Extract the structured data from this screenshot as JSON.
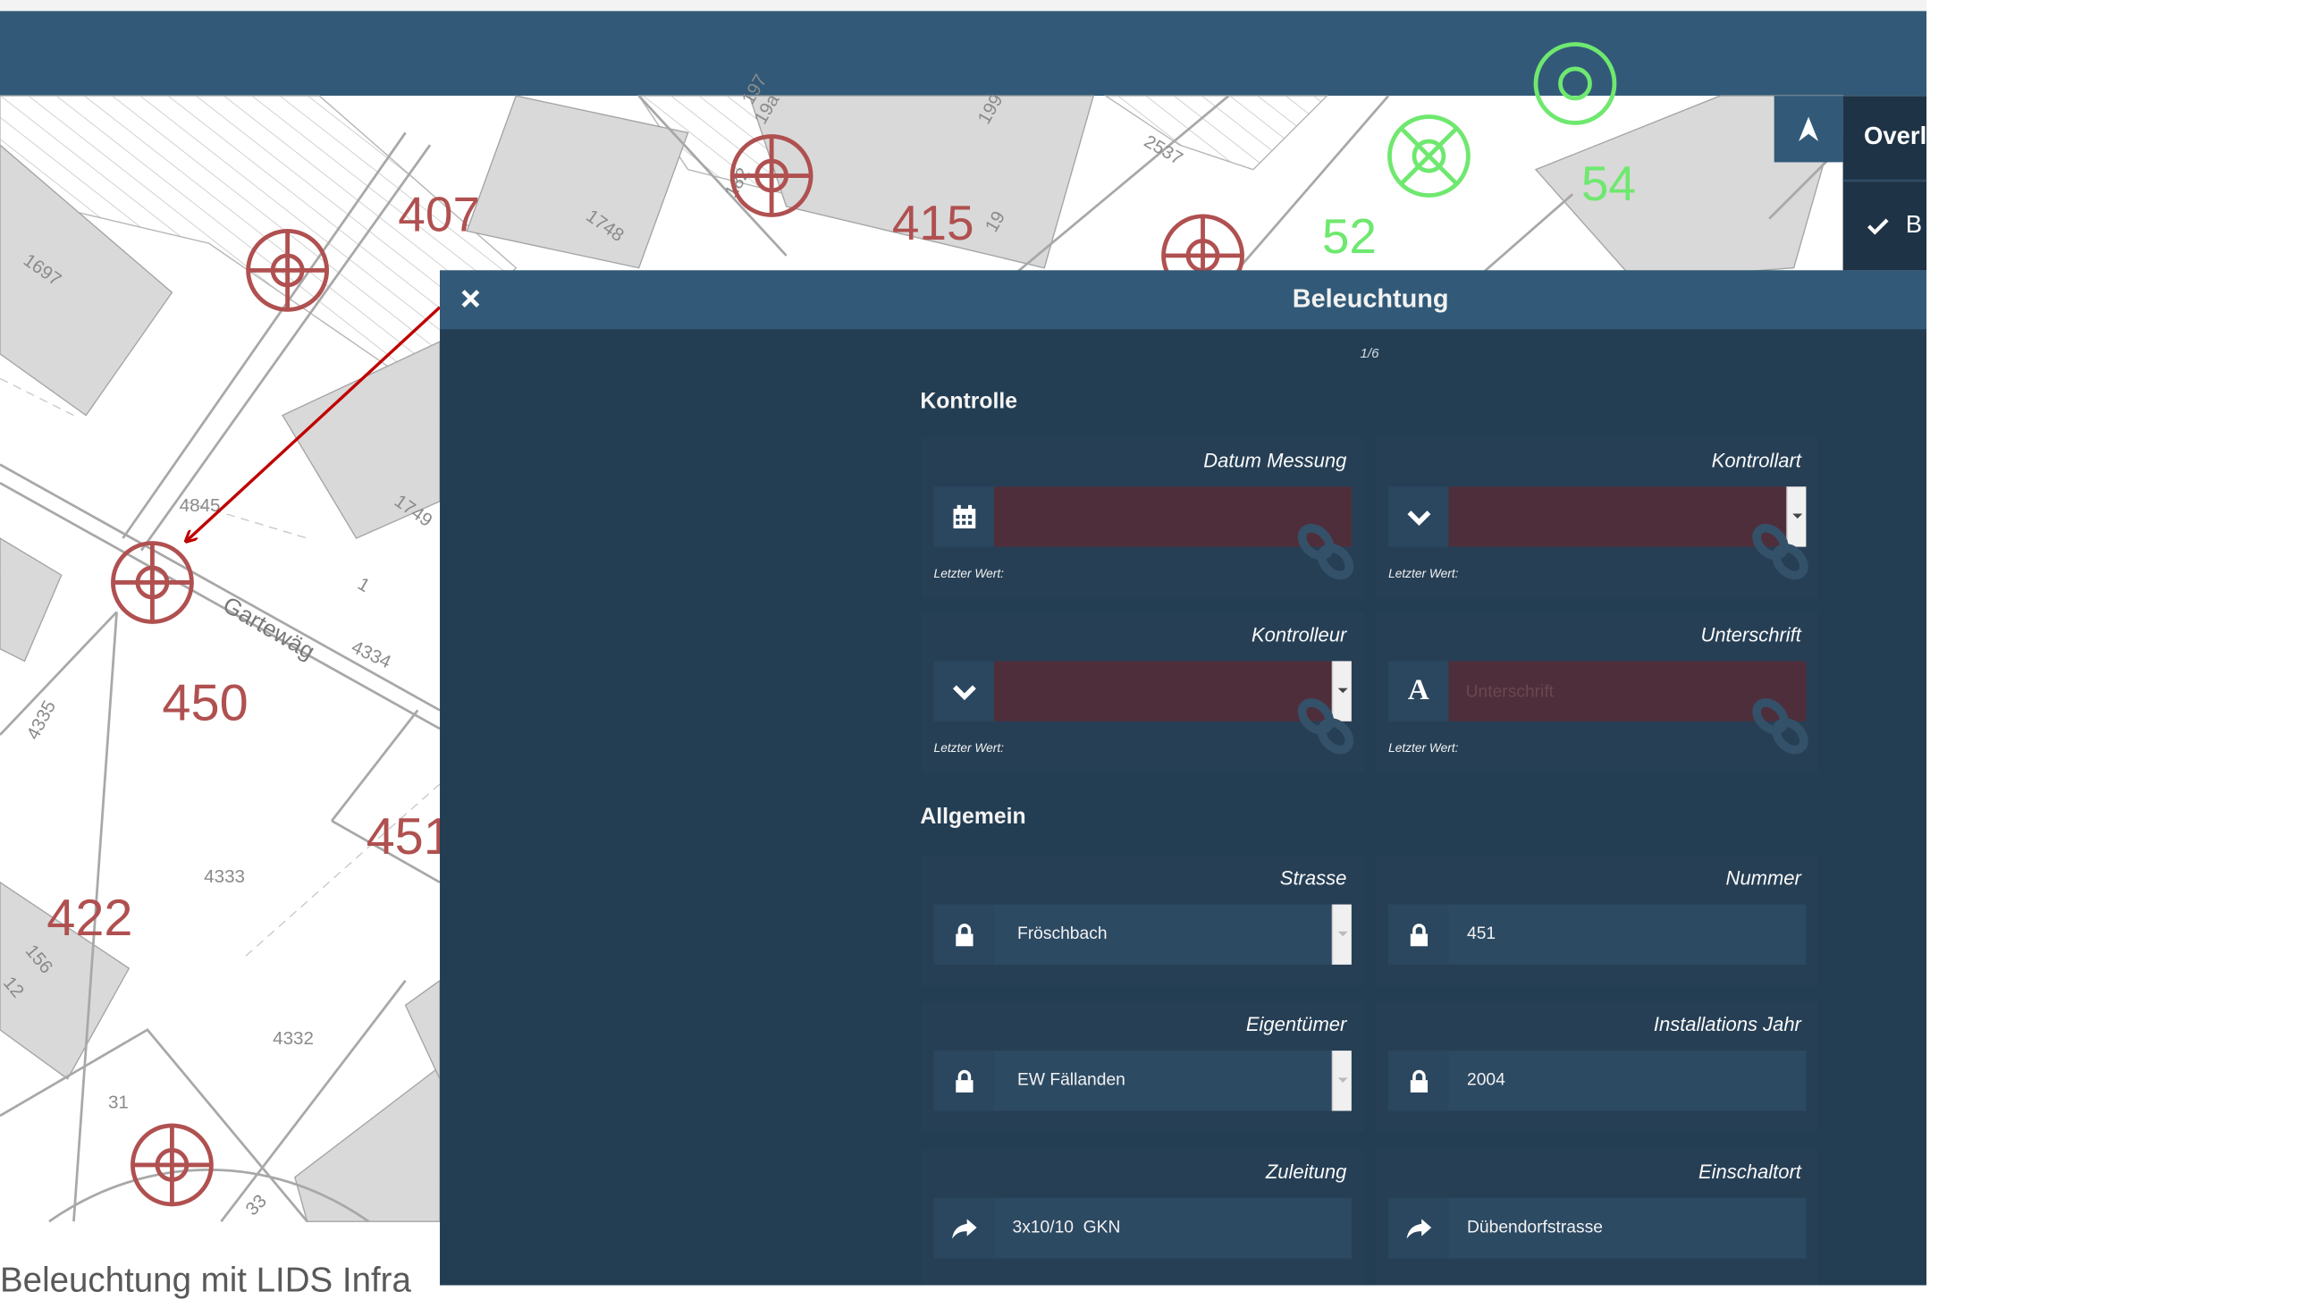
{
  "map": {
    "parcel_numbers": [
      "407",
      "415",
      "450",
      "451",
      "422",
      "52",
      "54"
    ],
    "lot_numbers": [
      "1697",
      "1748",
      "1749",
      "4845",
      "4333",
      "4332",
      "4334",
      "4335",
      "1",
      "19",
      "19a",
      "197",
      "199",
      "182",
      "2537",
      "156",
      "12",
      "31",
      "33"
    ],
    "street_label": "Gartewäg",
    "caption": "Beleuchtung mit LIDS Infra",
    "colors": {
      "lamp": "#b05050",
      "lamp_green": "#6fe86f",
      "arrow": "#c00000"
    }
  },
  "overlay_panel": {
    "title": "Overl",
    "item_label": "B"
  },
  "dialog": {
    "title": "Beleuchtung",
    "pager": "1/6",
    "sections": {
      "kontrolle": {
        "title": "Kontrolle",
        "datum_messung": {
          "label": "Datum Messung",
          "last_value": "Letzter Wert:",
          "icon": "calendar-icon"
        },
        "kontrollart": {
          "label": "Kontrollart",
          "last_value": "Letzter Wert:",
          "icon": "chevron-down-icon"
        },
        "kontrolleur": {
          "label": "Kontrolleur",
          "last_value": "Letzter Wert:",
          "icon": "chevron-down-icon"
        },
        "unterschrift": {
          "label": "Unterschrift",
          "placeholder": "Unterschrift",
          "last_value": "Letzter Wert:",
          "icon": "text-icon"
        }
      },
      "allgemein": {
        "title": "Allgemein",
        "strasse": {
          "label": "Strasse",
          "value": "Fröschbach",
          "icon": "lock-icon"
        },
        "nummer": {
          "label": "Nummer",
          "value": "451",
          "icon": "lock-icon"
        },
        "eigentuemer": {
          "label": "Eigentümer",
          "value": "EW Fällanden",
          "icon": "lock-icon"
        },
        "installations_jahr": {
          "label": "Installations Jahr",
          "value": "2004",
          "icon": "lock-icon"
        },
        "zuleitung": {
          "label": "Zuleitung",
          "value": "3x10/10  GKN",
          "icon": "share-arrow-icon"
        },
        "einschaltort": {
          "label": "Einschaltort",
          "value": "Dübendorfstrasse",
          "icon": "share-arrow-icon"
        }
      }
    },
    "colors": {
      "header": "#325a78",
      "body": "#233d52",
      "error_field": "#4f2e3b"
    }
  }
}
